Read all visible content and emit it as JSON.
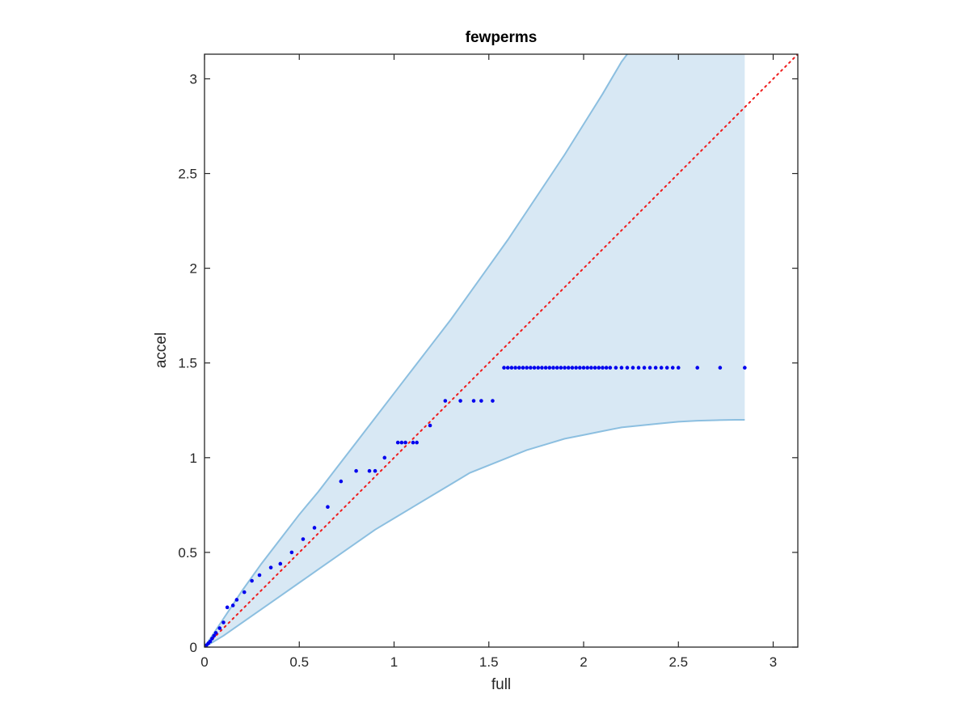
{
  "chart_data": {
    "type": "scatter",
    "title": "fewperms",
    "xlabel": "full",
    "ylabel": "accel",
    "xlim": [
      0,
      3.13
    ],
    "ylim": [
      0,
      3.13
    ],
    "xticks": [
      0,
      0.5,
      1,
      1.5,
      2,
      2.5,
      3
    ],
    "yticks": [
      0,
      0.5,
      1,
      1.5,
      2,
      2.5,
      3
    ],
    "xtick_labels": [
      "0",
      "0.5",
      "1",
      "1.5",
      "2",
      "2.5",
      "3"
    ],
    "ytick_labels": [
      "0",
      "0.5",
      "1",
      "1.5",
      "2",
      "2.5",
      "3"
    ],
    "grid": false,
    "colors": {
      "band_fill": "#d8e8f4",
      "band_edge": "#8cbfe0",
      "points": "#0000ee",
      "reference_line": "#ee1c1c",
      "axes": "#262626"
    },
    "confidence_band": {
      "upper": {
        "x": [
          0,
          0.1,
          0.2,
          0.3,
          0.4,
          0.5,
          0.6,
          0.7,
          0.8,
          0.9,
          1.0,
          1.1,
          1.2,
          1.3,
          1.4,
          1.5,
          1.6,
          1.7,
          1.8,
          1.9,
          2.0,
          2.1,
          2.2,
          2.23
        ],
        "y": [
          0,
          0.15,
          0.3,
          0.44,
          0.57,
          0.7,
          0.82,
          0.95,
          1.08,
          1.21,
          1.34,
          1.47,
          1.6,
          1.73,
          1.87,
          2.01,
          2.15,
          2.3,
          2.45,
          2.6,
          2.76,
          2.92,
          3.09,
          3.13
        ]
      },
      "lower": {
        "x": [
          0,
          0.1,
          0.2,
          0.3,
          0.4,
          0.5,
          0.6,
          0.7,
          0.8,
          0.9,
          1.0,
          1.1,
          1.2,
          1.3,
          1.4,
          1.5,
          1.6,
          1.7,
          1.8,
          1.9,
          2.0,
          2.1,
          2.2,
          2.3,
          2.4,
          2.5,
          2.6,
          2.7,
          2.8,
          2.85
        ],
        "y": [
          0,
          0.06,
          0.13,
          0.2,
          0.27,
          0.34,
          0.41,
          0.48,
          0.55,
          0.62,
          0.68,
          0.74,
          0.8,
          0.86,
          0.92,
          0.96,
          1.0,
          1.04,
          1.07,
          1.1,
          1.12,
          1.14,
          1.16,
          1.17,
          1.18,
          1.19,
          1.195,
          1.198,
          1.2,
          1.2
        ]
      },
      "x_end": 2.85
    },
    "reference_line": {
      "x": [
        0,
        3.13
      ],
      "y": [
        0,
        3.13
      ],
      "style": "dotted"
    },
    "points": {
      "x": [
        0.005,
        0.01,
        0.02,
        0.03,
        0.04,
        0.05,
        0.06,
        0.08,
        0.1,
        0.12,
        0.15,
        0.17,
        0.21,
        0.25,
        0.29,
        0.35,
        0.4,
        0.46,
        0.52,
        0.58,
        0.65,
        0.72,
        0.8,
        0.87,
        0.9,
        0.95,
        1.02,
        1.04,
        1.06,
        1.1,
        1.12,
        1.19,
        1.27,
        1.35,
        1.42,
        1.46,
        1.52,
        1.58,
        1.6,
        1.62,
        1.64,
        1.66,
        1.68,
        1.7,
        1.72,
        1.74,
        1.76,
        1.78,
        1.8,
        1.82,
        1.84,
        1.86,
        1.88,
        1.9,
        1.92,
        1.94,
        1.96,
        1.98,
        2.0,
        2.02,
        2.04,
        2.06,
        2.08,
        2.1,
        2.12,
        2.14,
        2.17,
        2.2,
        2.23,
        2.26,
        2.29,
        2.32,
        2.35,
        2.38,
        2.41,
        2.44,
        2.47,
        2.5,
        2.6,
        2.72,
        2.85
      ],
      "y": [
        0.005,
        0.01,
        0.02,
        0.03,
        0.045,
        0.06,
        0.075,
        0.1,
        0.13,
        0.21,
        0.22,
        0.25,
        0.29,
        0.35,
        0.38,
        0.42,
        0.44,
        0.5,
        0.57,
        0.63,
        0.74,
        0.875,
        0.93,
        0.93,
        0.93,
        1.0,
        1.08,
        1.08,
        1.08,
        1.08,
        1.08,
        1.17,
        1.3,
        1.3,
        1.3,
        1.3,
        1.3,
        1.475,
        1.475,
        1.475,
        1.475,
        1.475,
        1.475,
        1.475,
        1.475,
        1.475,
        1.475,
        1.475,
        1.475,
        1.475,
        1.475,
        1.475,
        1.475,
        1.475,
        1.475,
        1.475,
        1.475,
        1.475,
        1.475,
        1.475,
        1.475,
        1.475,
        1.475,
        1.475,
        1.475,
        1.475,
        1.475,
        1.475,
        1.475,
        1.475,
        1.475,
        1.475,
        1.475,
        1.475,
        1.475,
        1.475,
        1.475,
        1.475,
        1.475,
        1.475,
        1.475
      ]
    }
  }
}
